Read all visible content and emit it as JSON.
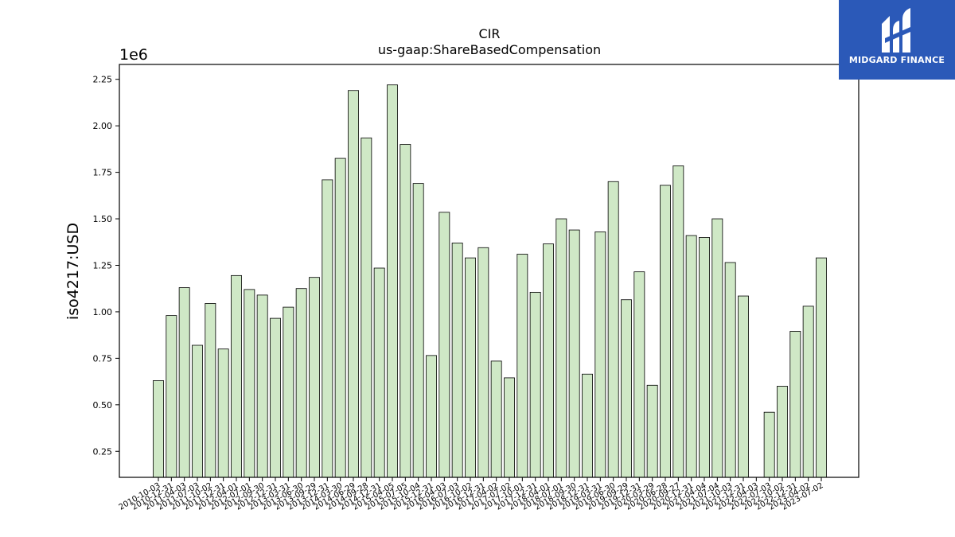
{
  "brand": {
    "name": "MIDGARD FINANCE",
    "color": "#2b59b8",
    "icon": "midgard-logo-icon"
  },
  "chart_data": {
    "type": "bar",
    "title": "CIR",
    "subtitle": "us-gaap:ShareBasedCompensation",
    "ylabel": "iso4217:USD",
    "xlabel": "",
    "y_multiplier": "1e6",
    "ylim": [
      0.11,
      2.33
    ],
    "yticks": [
      0.25,
      0.5,
      0.75,
      1.0,
      1.25,
      1.5,
      1.75,
      2.0,
      2.25
    ],
    "bar_color": "#cfe8c6",
    "bar_edge_color": "#000000",
    "grid": false,
    "categories": [
      "2010-10-03",
      "2010-12-31",
      "2011-04-03",
      "2011-07-03",
      "2011-10-02",
      "2011-12-31",
      "2012-04-01",
      "2012-07-01",
      "2012-09-30",
      "2012-12-31",
      "2013-03-31",
      "2013-06-30",
      "2013-09-29",
      "2013-12-31",
      "2014-03-30",
      "2014-06-29",
      "2014-09-28",
      "2014-12-31",
      "2015-04-05",
      "2015-07-05",
      "2015-10-04",
      "2015-12-31",
      "2016-04-03",
      "2016-07-03",
      "2016-10-02",
      "2016-12-31",
      "2017-04-02",
      "2017-07-02",
      "2017-10-01",
      "2017-12-31",
      "2018-04-01",
      "2018-07-01",
      "2018-09-30",
      "2018-12-31",
      "2019-03-31",
      "2019-06-30",
      "2019-09-29",
      "2019-12-31",
      "2020-03-29",
      "2020-06-28",
      "2020-09-27",
      "2020-12-31",
      "2021-04-04",
      "2021-07-04",
      "2021-10-03",
      "2021-12-31",
      "2022-04-03",
      "2022-07-03",
      "2022-10-02",
      "2022-12-31",
      "2023-04-02",
      "2023-07-02"
    ],
    "values": [
      0.63,
      0.98,
      1.13,
      0.82,
      1.045,
      0.8,
      1.195,
      1.12,
      1.09,
      0.965,
      1.025,
      1.125,
      1.185,
      1.71,
      1.825,
      2.19,
      1.935,
      1.235,
      2.22,
      1.9,
      1.69,
      0.765,
      1.535,
      1.37,
      1.29,
      1.345,
      0.735,
      0.645,
      1.31,
      1.105,
      1.365,
      1.5,
      1.44,
      0.665,
      1.43,
      1.7,
      1.065,
      1.215,
      0.605,
      1.68,
      1.785,
      1.41,
      1.4,
      1.5,
      1.265,
      1.085,
      null,
      0.46,
      0.6,
      0.895,
      1.03,
      1.29
    ]
  }
}
